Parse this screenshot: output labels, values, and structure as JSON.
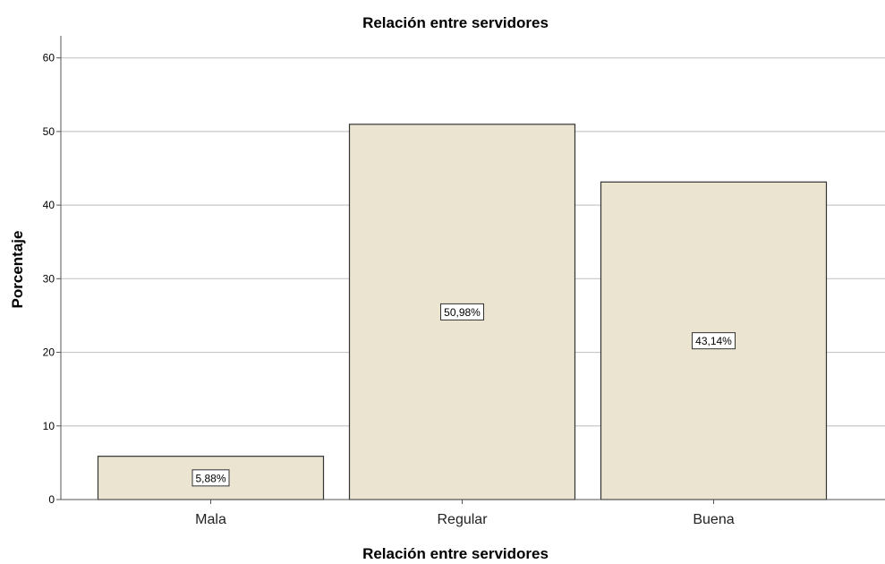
{
  "chart_data": {
    "type": "bar",
    "title": "Relación entre servidores",
    "xlabel": "Relación entre servidores",
    "ylabel": "Porcentaje",
    "categories": [
      "Mala",
      "Regular",
      "Buena"
    ],
    "values": [
      5.88,
      50.98,
      43.14
    ],
    "data_labels": [
      "5,88%",
      "50,98%",
      "43,14%"
    ],
    "ylim": [
      0,
      63
    ],
    "yticks": [
      0,
      10,
      20,
      30,
      40,
      50,
      60
    ],
    "grid": true,
    "legend": "none",
    "colors": {
      "bar_fill": "#ebe4d1",
      "bar_stroke": "#333333",
      "grid": "#c8c8c8",
      "axis": "#555555"
    }
  }
}
